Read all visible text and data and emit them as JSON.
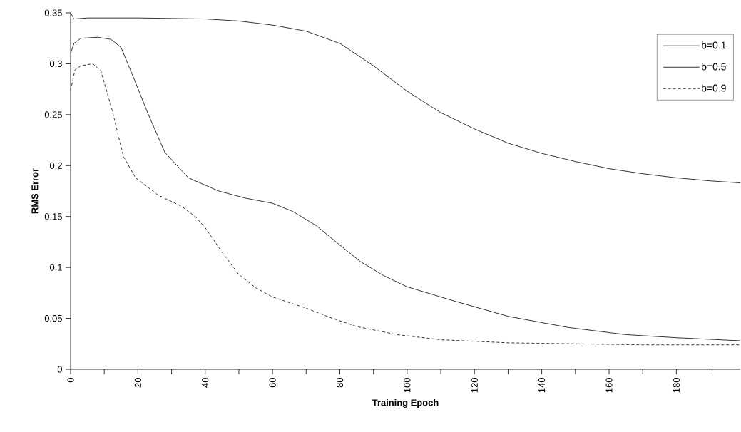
{
  "chart_data": {
    "type": "line",
    "xlabel": "Training Epoch",
    "ylabel": "RMS Error",
    "xlim": [
      0,
      199
    ],
    "ylim": [
      0,
      0.35
    ],
    "xticks": [
      0,
      {
        "value": 10,
        "label": null
      },
      20,
      {
        "value": 30,
        "label": null
      },
      40,
      {
        "value": 50,
        "label": null
      },
      60,
      {
        "value": 70,
        "label": null
      },
      80,
      {
        "value": 90,
        "label": null
      },
      100,
      {
        "value": 110,
        "label": null
      },
      120,
      {
        "value": 130,
        "label": null
      },
      140,
      {
        "value": 150,
        "label": null
      },
      160,
      {
        "value": 170,
        "label": null
      },
      180,
      {
        "value": 190,
        "label": null
      }
    ],
    "yticks": [
      0,
      0.05,
      0.1,
      0.15,
      0.2,
      0.25,
      0.3,
      0.35
    ],
    "grid": false,
    "legend": "top right",
    "marker": "none",
    "series": [
      {
        "name": "b=0.1",
        "color": "#000000",
        "line_style": "solid",
        "x": [
          0,
          1,
          5,
          20,
          40,
          50,
          60,
          70,
          80,
          90,
          100,
          110,
          120,
          130,
          140,
          150,
          160,
          170,
          180,
          190,
          199
        ],
        "values": [
          0.35,
          0.344,
          0.345,
          0.345,
          0.344,
          0.342,
          0.338,
          0.332,
          0.32,
          0.298,
          0.273,
          0.252,
          0.236,
          0.222,
          0.212,
          0.204,
          0.197,
          0.192,
          0.188,
          0.185,
          0.183
        ]
      },
      {
        "name": "b=0.5",
        "color": "#000000",
        "line_style": "solid",
        "x": [
          0,
          1,
          3,
          8,
          12,
          15,
          19,
          23,
          28,
          35,
          44,
          52,
          60,
          66,
          73,
          80,
          86,
          93,
          100,
          113,
          130,
          148,
          165,
          180,
          199
        ],
        "values": [
          0.31,
          0.32,
          0.325,
          0.326,
          0.324,
          0.316,
          0.284,
          0.251,
          0.213,
          0.188,
          0.175,
          0.168,
          0.163,
          0.155,
          0.141,
          0.122,
          0.106,
          0.092,
          0.081,
          0.068,
          0.052,
          0.041,
          0.034,
          0.031,
          0.028
        ]
      },
      {
        "name": "b=0.9",
        "color": "#000000",
        "line_style": "dashed",
        "x": [
          0,
          1.3,
          3,
          6.6,
          9,
          12.3,
          15.7,
          19.3,
          26,
          33,
          37,
          40,
          45,
          50,
          55,
          60,
          70,
          77,
          85,
          97,
          110,
          130,
          150,
          170,
          199
        ],
        "values": [
          0.274,
          0.294,
          0.298,
          0.3,
          0.293,
          0.255,
          0.209,
          0.188,
          0.171,
          0.16,
          0.15,
          0.139,
          0.115,
          0.093,
          0.08,
          0.071,
          0.06,
          0.051,
          0.042,
          0.034,
          0.029,
          0.026,
          0.025,
          0.024,
          0.024
        ]
      }
    ]
  }
}
